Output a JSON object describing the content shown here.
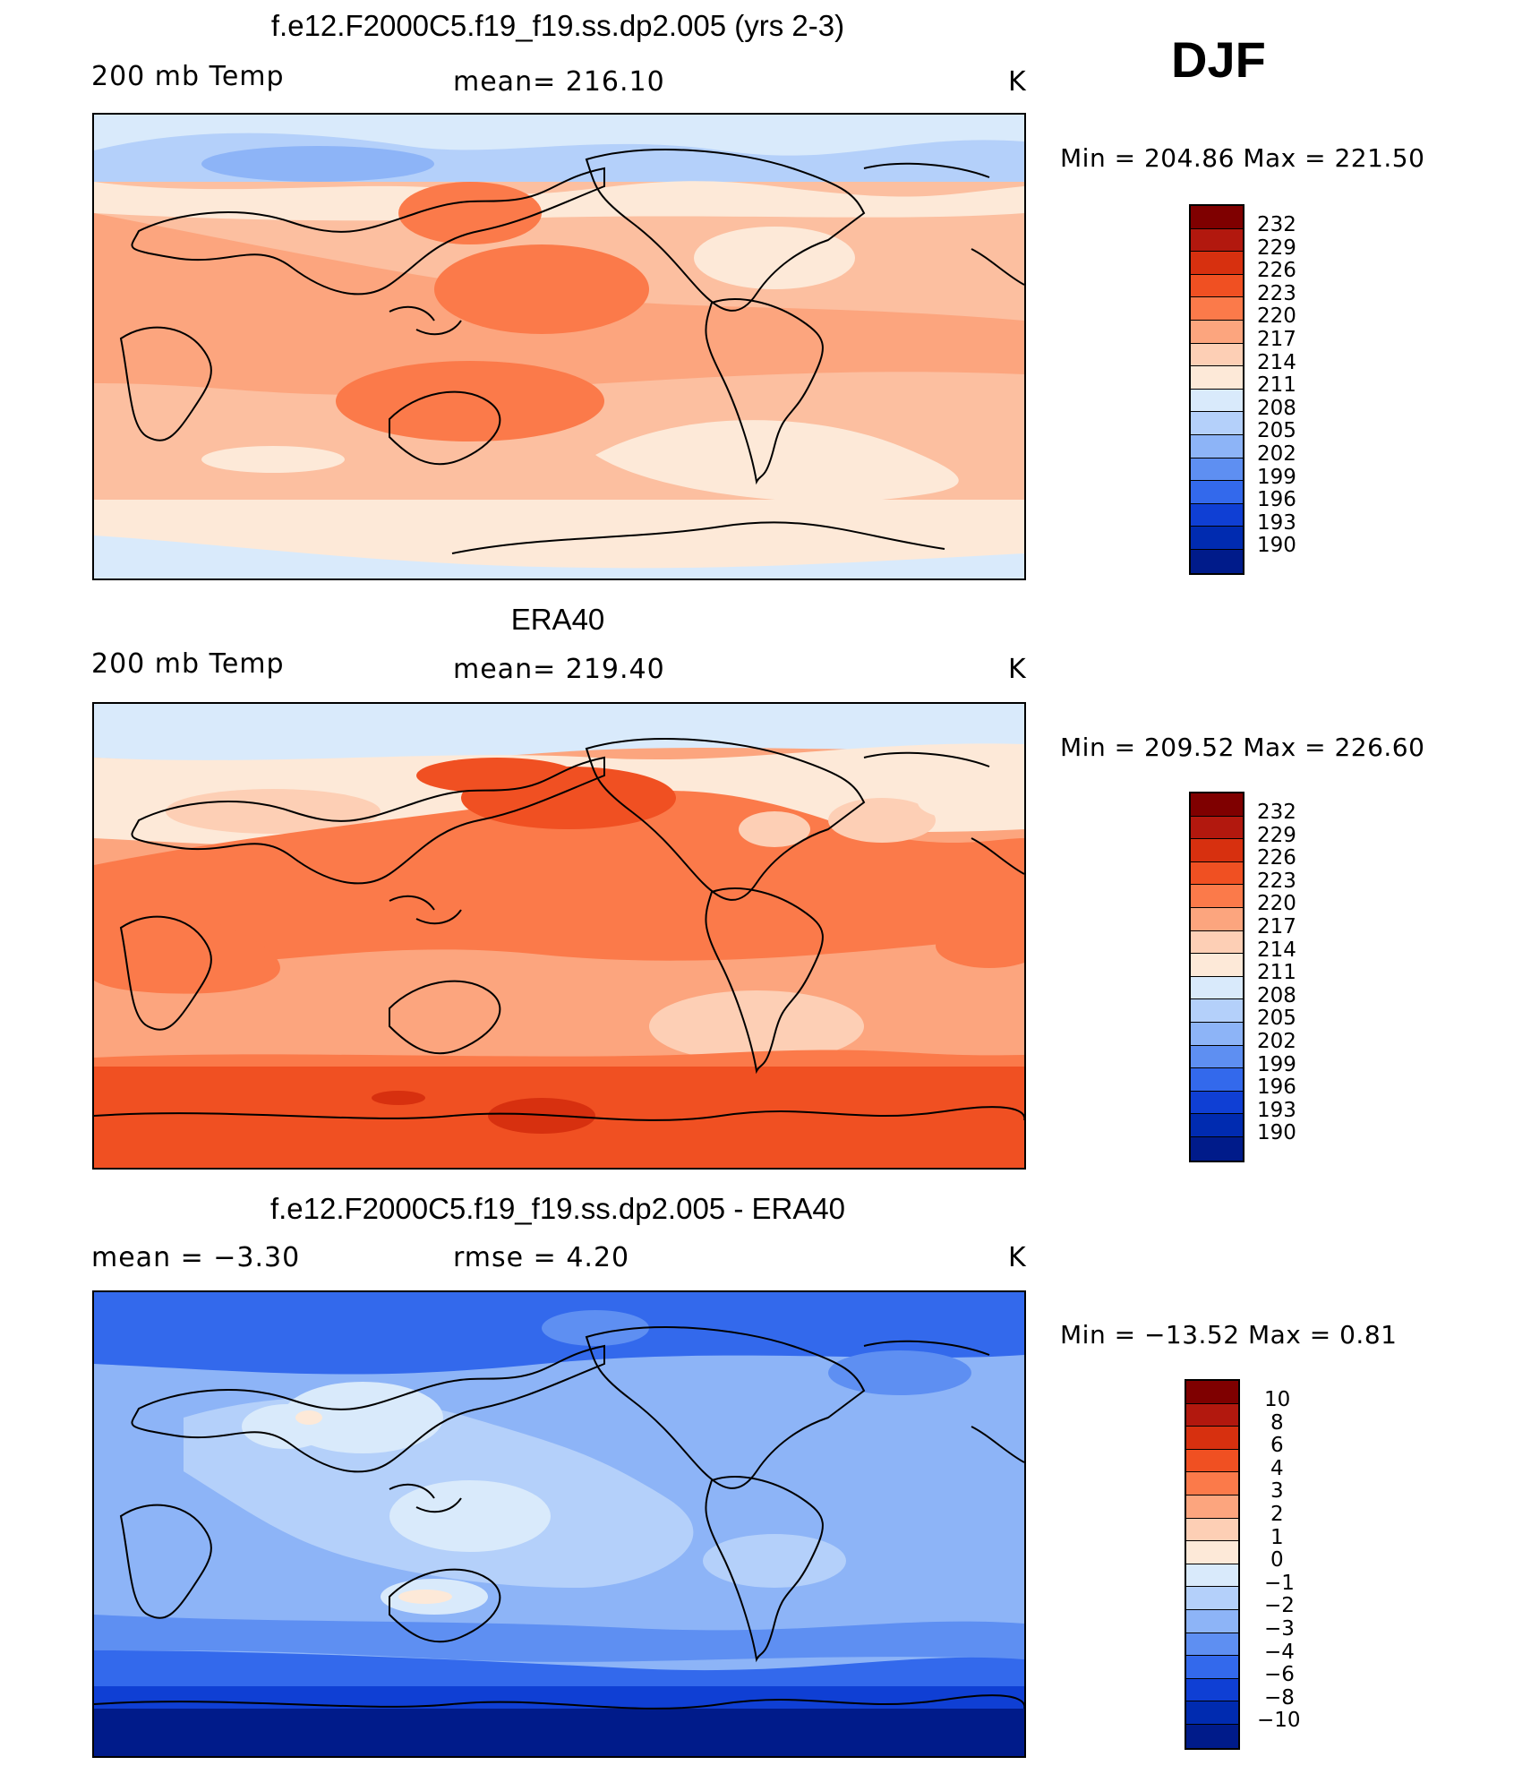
{
  "season": "DJF",
  "panels": [
    {
      "title": "f.e12.F2000C5.f19_f19.ss.dp2.005 (yrs 2-3)",
      "left_label": "200 mb Temp",
      "center_label": "mean=  216.10",
      "units": "K",
      "minmax": "Min  =  204.86  Max  =  221.50",
      "colorbar_ticks": [
        "232",
        "229",
        "226",
        "223",
        "220",
        "217",
        "214",
        "211",
        "208",
        "205",
        "202",
        "199",
        "196",
        "193",
        "190"
      ],
      "kind": "model"
    },
    {
      "title": "ERA40",
      "left_label": "200 mb Temp",
      "center_label": "mean=  219.40",
      "units": "K",
      "minmax": "Min  =  209.52  Max  =  226.60",
      "colorbar_ticks": [
        "232",
        "229",
        "226",
        "223",
        "220",
        "217",
        "214",
        "211",
        "208",
        "205",
        "202",
        "199",
        "196",
        "193",
        "190"
      ],
      "kind": "obs"
    },
    {
      "title": "f.e12.F2000C5.f19_f19.ss.dp2.005 - ERA40",
      "left_label": "mean  =     −3.30",
      "center_label": "rmse  =     4.20",
      "units": "K",
      "minmax": "Min  =  −13.52  Max  =     0.81",
      "colorbar_ticks": [
        "10",
        "8",
        "6",
        "4",
        "3",
        "2",
        "1",
        "0",
        "−1",
        "−2",
        "−3",
        "−4",
        "−6",
        "−8",
        "−10"
      ],
      "kind": "diff"
    }
  ],
  "colorbar_colors": [
    "#7f0000",
    "#b2180e",
    "#d7300f",
    "#f05022",
    "#fb7a4a",
    "#fca57e",
    "#fdcfb5",
    "#fde9d8",
    "#d9eafb",
    "#b4d0fa",
    "#8db4f7",
    "#5e8ff2",
    "#3369ec",
    "#0f3fd4",
    "#002bb0",
    "#001b8a"
  ]
}
